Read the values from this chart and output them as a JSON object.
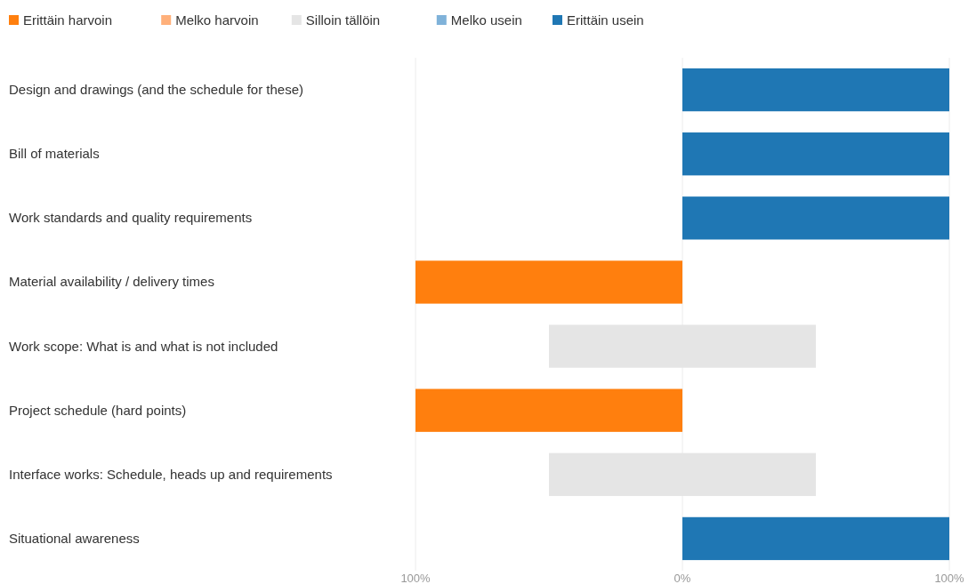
{
  "chart_data": {
    "type": "bar",
    "orientation": "horizontal",
    "categories": [
      "Design and drawings (and the schedule for these)",
      "Bill of materials",
      "Work standards and quality requirements",
      "Material availability / delivery times",
      "Work scope: What is and what is not included",
      "Project schedule (hard points)",
      "Interface works: Schedule, heads up and requirements",
      "Situational awareness"
    ],
    "series": [
      {
        "name": "Erittäin harvoin",
        "color": "#ff7f0e",
        "values": [
          null,
          null,
          null,
          100,
          null,
          100,
          null,
          null
        ],
        "base": [
          null,
          null,
          null,
          -100,
          null,
          -100,
          null,
          null
        ]
      },
      {
        "name": "Melko harvoin",
        "color": "#ffb07a",
        "values": [
          null,
          null,
          null,
          null,
          null,
          null,
          null,
          null
        ],
        "base": [
          null,
          null,
          null,
          null,
          null,
          null,
          null,
          null
        ]
      },
      {
        "name": "Silloin tällöin",
        "color": "#e5e5e5",
        "values": [
          null,
          null,
          null,
          null,
          100,
          null,
          100,
          null
        ],
        "base": [
          null,
          null,
          null,
          null,
          -50,
          null,
          -50,
          null
        ]
      },
      {
        "name": "Melko usein",
        "color": "#7fb2d9",
        "values": [
          null,
          null,
          null,
          null,
          null,
          null,
          null,
          null
        ],
        "base": [
          null,
          null,
          null,
          null,
          null,
          null,
          null,
          null
        ]
      },
      {
        "name": "Erittäin usein",
        "color": "#1f77b4",
        "values": [
          100,
          100,
          100,
          null,
          null,
          null,
          null,
          100
        ],
        "base": [
          0,
          0,
          0,
          null,
          null,
          null,
          null,
          0
        ]
      }
    ],
    "xlim": [
      -100,
      100
    ],
    "xticks": [
      {
        "value": -100,
        "label": "100%"
      },
      {
        "value": 0,
        "label": "0%"
      },
      {
        "value": 100,
        "label": "100%"
      }
    ],
    "grid": "x",
    "legend": "top left"
  }
}
